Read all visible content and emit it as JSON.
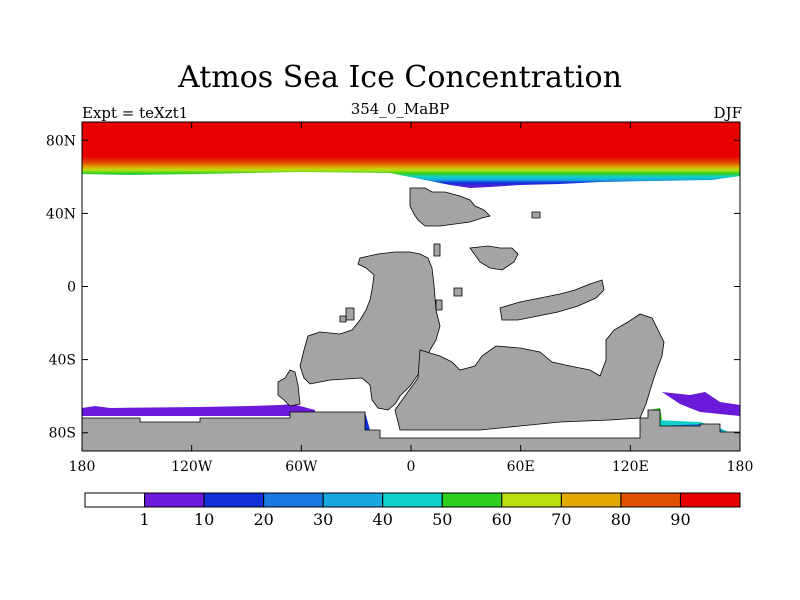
{
  "chart_data": {
    "type": "heatmap",
    "title": "Atmos Sea Ice Concentration",
    "left_label": "Expt = teXzt1",
    "center_label": "354_0_MaBP",
    "right_label": "DJF",
    "x_ticks": [
      "180",
      "120W",
      "60W",
      "0",
      "60E",
      "120E",
      "180"
    ],
    "y_ticks": [
      "80N",
      "40N",
      "0",
      "40S",
      "80S"
    ],
    "colorbar": {
      "labels": [
        "1",
        "10",
        "20",
        "30",
        "40",
        "50",
        "60",
        "70",
        "80",
        "90"
      ],
      "colors": [
        "#ffffff",
        "#6a1ad8",
        "#1230d8",
        "#1a78e0",
        "#18a8e0",
        "#10d0c8",
        "#30d020",
        "#b8e010",
        "#e0a800",
        "#e05000",
        "#e80000"
      ]
    },
    "land_color": "#a4a4a4",
    "ice_bands": {
      "north_edge_latitude": 56,
      "north_full_ice_latitude": 66,
      "south_weddell_edge_latitude": -68,
      "south_ross_edge_latitude": -66
    }
  }
}
